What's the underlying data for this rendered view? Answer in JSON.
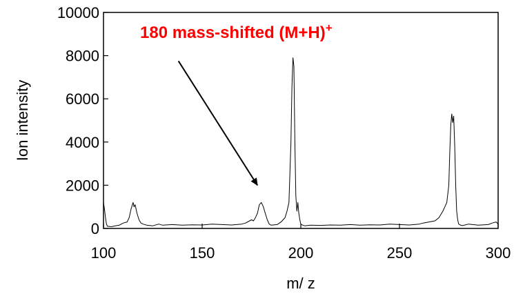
{
  "chart_data": {
    "type": "line",
    "title": "",
    "xlabel": "m/ z",
    "ylabel": "Ion intensity",
    "xlim": [
      100,
      300
    ],
    "ylim": [
      0,
      10000
    ],
    "xticks": [
      "100",
      "150",
      "200",
      "250",
      "300"
    ],
    "yticks": [
      "0",
      "2000",
      "4000",
      "6000",
      "8000",
      "10000"
    ],
    "grid": false,
    "legend": "none",
    "line_color": "#000000",
    "annotation": {
      "text": "180 mass-shifted (M+H)",
      "superscript": "+",
      "color": "#ff0000",
      "arrow_from": [
        138,
        7750
      ],
      "arrow_to": [
        178,
        2000
      ]
    },
    "series": [
      {
        "x": [
          100,
          100.5,
          101,
          101.5,
          102,
          104,
          106,
          108,
          110,
          112,
          113,
          114,
          115,
          115.5,
          116,
          117,
          118,
          119,
          120,
          122,
          125,
          128,
          130,
          135,
          140,
          145,
          150,
          155,
          160,
          165,
          170,
          172,
          175,
          176,
          177,
          178,
          179,
          180,
          181,
          182,
          183,
          184,
          185,
          188,
          190,
          192,
          193,
          194,
          195,
          195.5,
          196,
          196.5,
          197,
          197.5,
          198,
          198.5,
          199,
          199.5,
          200,
          201,
          202,
          205,
          210,
          215,
          220,
          225,
          230,
          235,
          240,
          245,
          250,
          255,
          260,
          262,
          265,
          268,
          270,
          272,
          273,
          274,
          275,
          275.5,
          276,
          276.5,
          277,
          277.5,
          278,
          278.5,
          279,
          279.5,
          280,
          281,
          282,
          285,
          290,
          295,
          297,
          299,
          300
        ],
        "y": [
          1200,
          900,
          500,
          200,
          100,
          80,
          120,
          150,
          250,
          300,
          500,
          900,
          1200,
          1000,
          1100,
          700,
          400,
          250,
          200,
          150,
          120,
          200,
          150,
          180,
          150,
          170,
          160,
          200,
          180,
          160,
          200,
          250,
          400,
          350,
          500,
          700,
          1100,
          1200,
          1000,
          700,
          400,
          200,
          150,
          180,
          300,
          500,
          800,
          1200,
          4000,
          6500,
          7900,
          7500,
          4000,
          1500,
          800,
          1200,
          700,
          400,
          200,
          150,
          120,
          150,
          140,
          160,
          150,
          180,
          150,
          170,
          160,
          200,
          180,
          160,
          200,
          250,
          300,
          350,
          500,
          800,
          1000,
          1200,
          2000,
          3500,
          4800,
          5300,
          4900,
          5200,
          3800,
          2000,
          800,
          400,
          200,
          150,
          130,
          200,
          150,
          180,
          250,
          300,
          200
        ]
      }
    ]
  }
}
